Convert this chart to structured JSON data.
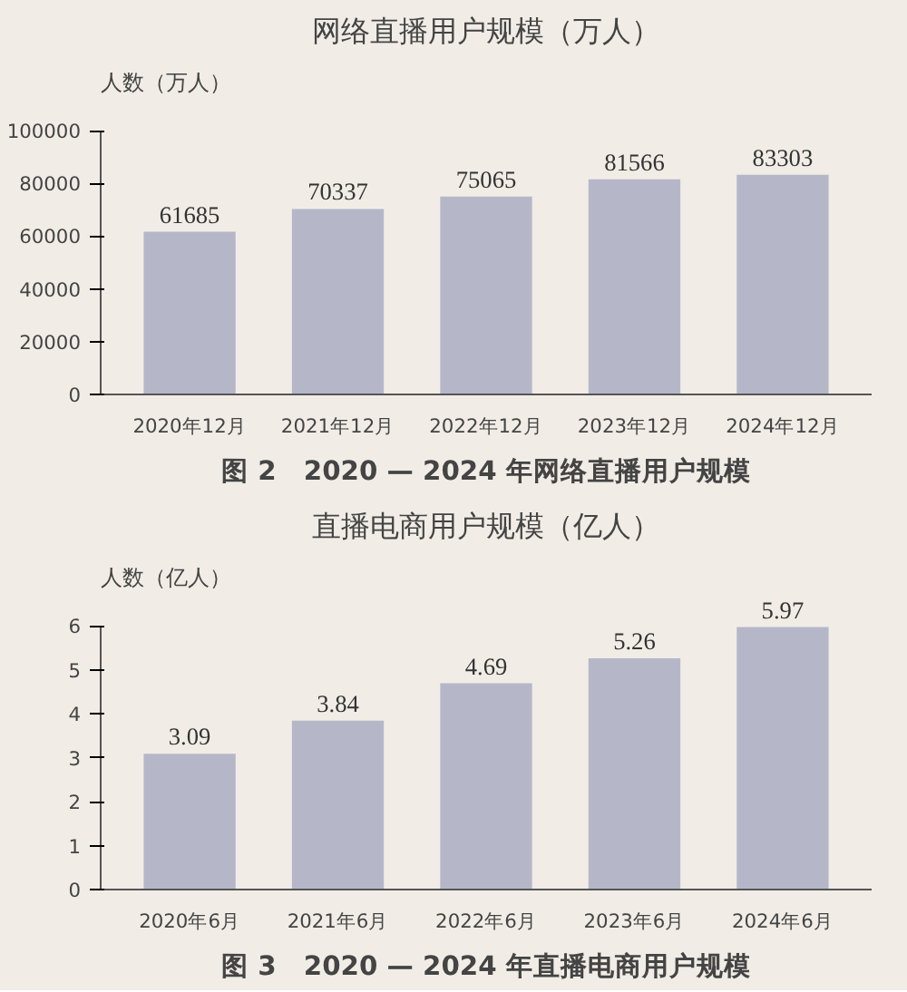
{
  "chart_data": [
    {
      "type": "bar",
      "title": "网络直播用户规模（万人）",
      "ylabel": "人数（万人）",
      "categories": [
        "2020年12月",
        "2021年12月",
        "2022年12月",
        "2023年12月",
        "2024年12月"
      ],
      "values": [
        61685,
        70337,
        75065,
        81566,
        83303
      ],
      "color": "#b5b7c9",
      "ylim": [
        0,
        100000
      ],
      "yticks": [
        0,
        20000,
        40000,
        60000,
        80000,
        100000
      ],
      "data_labels": true,
      "grid": false,
      "annotations": [
        "图 2　2020 — 2024 年网络直播用户规模"
      ]
    },
    {
      "type": "bar",
      "title": "直播电商用户规模（亿人）",
      "ylabel": "人数（亿人）",
      "categories": [
        "2020年6月",
        "2021年6月",
        "2022年6月",
        "2023年6月",
        "2024年6月"
      ],
      "values": [
        3.09,
        3.84,
        4.69,
        5.26,
        5.97
      ],
      "color": "#b5b7c9",
      "ylim": [
        0,
        6
      ],
      "yticks": [
        0,
        1,
        2,
        3,
        4,
        5,
        6
      ],
      "data_labels": true,
      "grid": false,
      "annotations": [
        "图 3　2020 — 2024 年直播电商用户规模"
      ]
    }
  ]
}
